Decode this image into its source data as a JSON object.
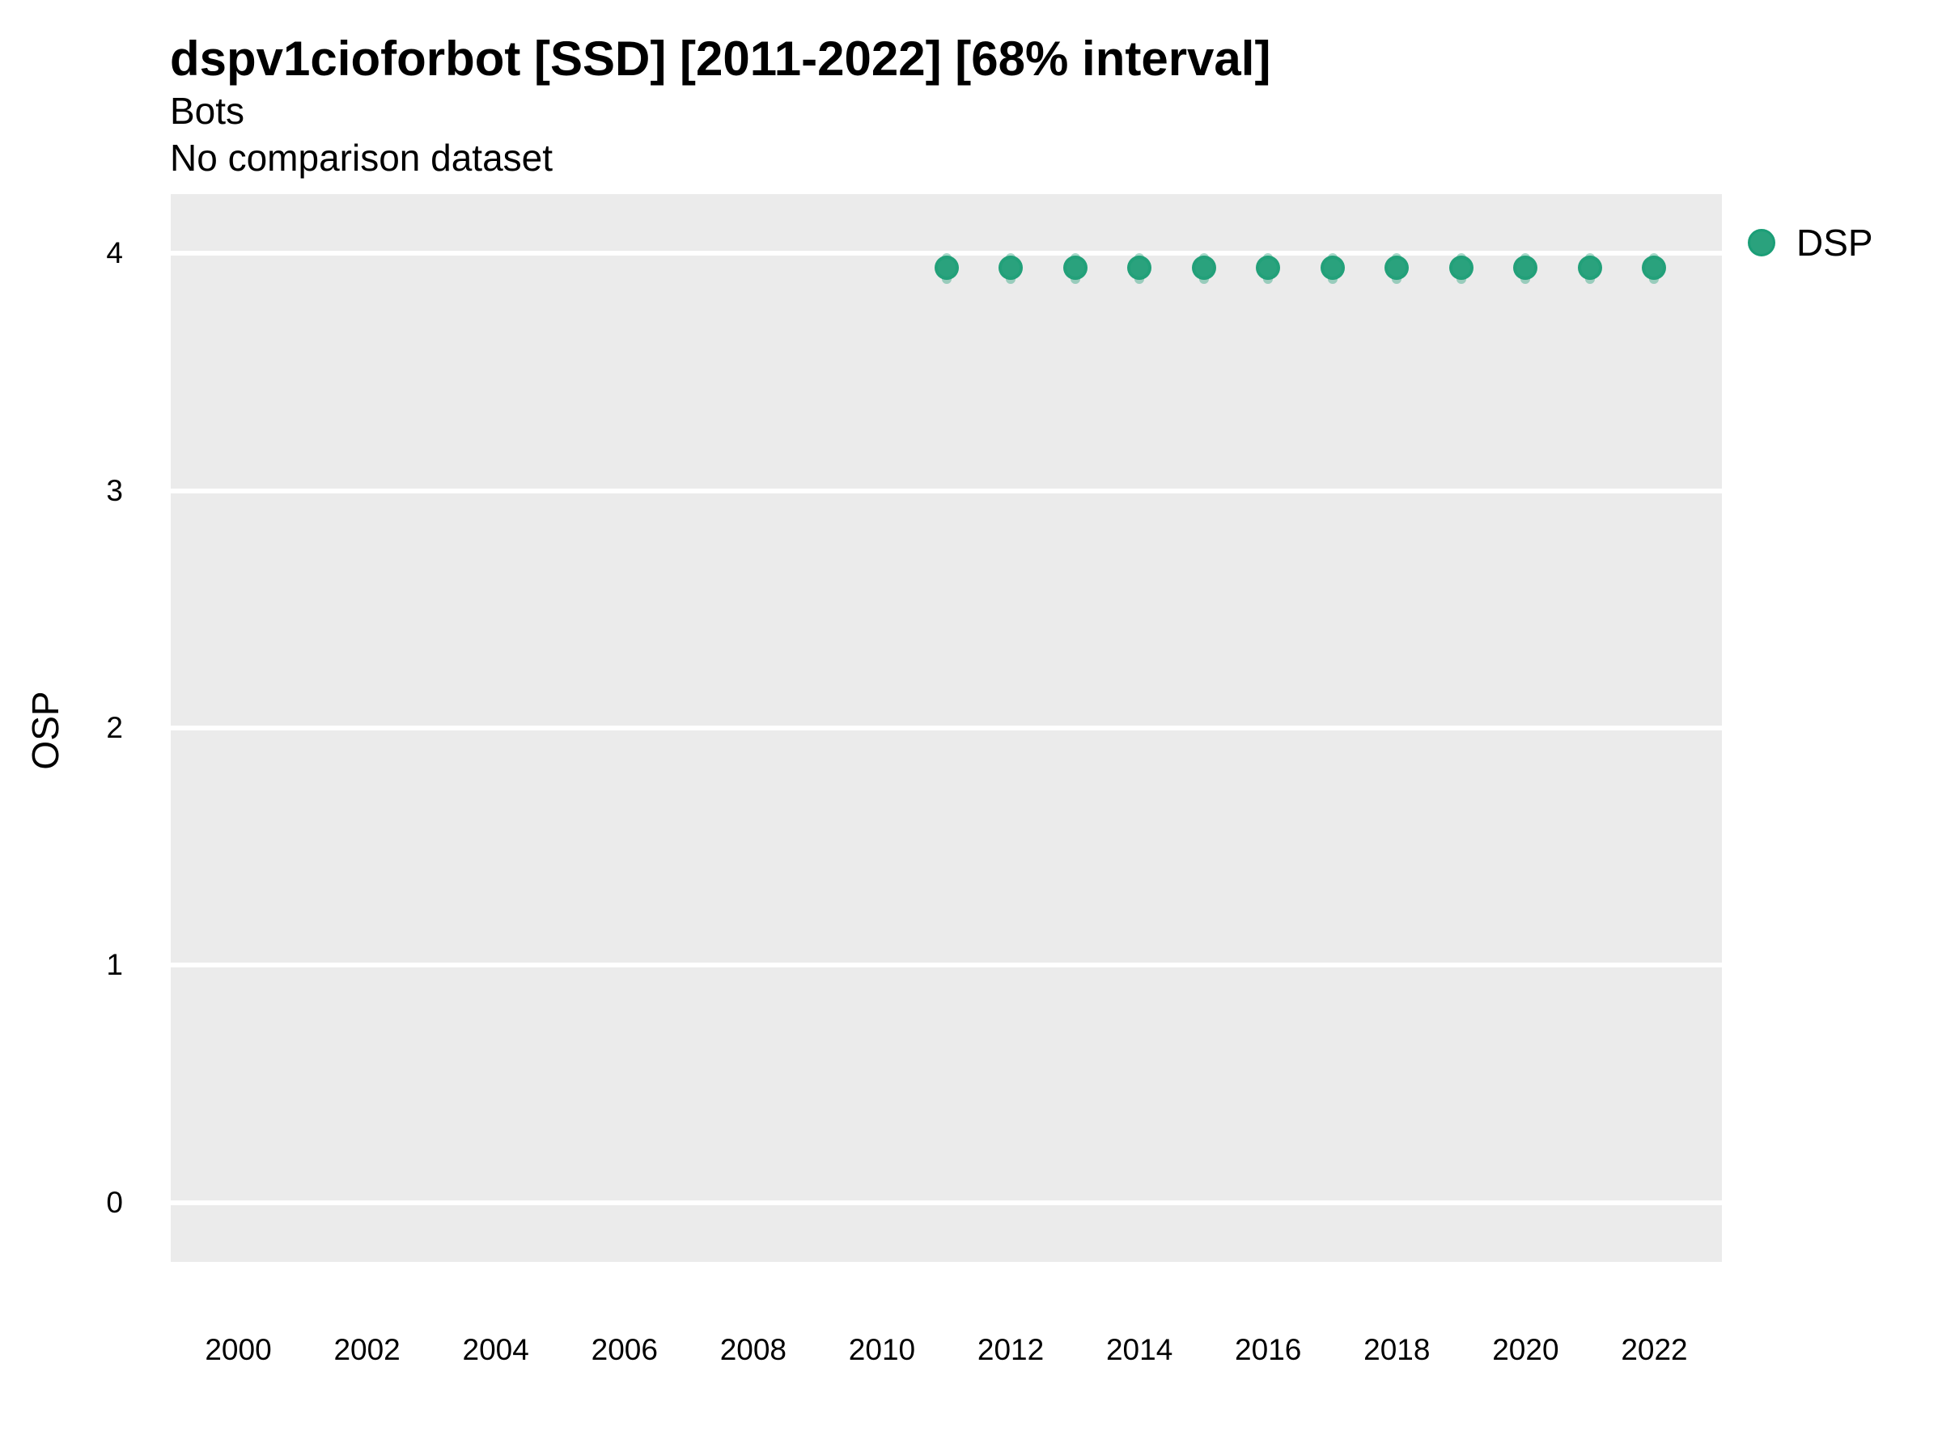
{
  "header": {
    "title": "dspv1cioforbot [SSD] [2011-2022] [68% interval]",
    "subtitle": "Bots",
    "comparison_note": "No comparison dataset"
  },
  "legend": {
    "items": [
      {
        "label": "DSP",
        "marker": "circle-icon",
        "color": "#2aa27d",
        "stroke": "#1b9e77"
      }
    ]
  },
  "colors": {
    "panel_background": "#ebebeb",
    "gridline": "#ffffff",
    "point_fill": "#2aa27d",
    "point_stroke": "rgba(27,158,119,0.55)",
    "error_bar": "rgba(41,161,124,0.42)",
    "text": "#000000"
  },
  "chart_data": {
    "type": "scatter",
    "title": "dspv1cioforbot [SSD] [2011-2022] [68% interval]",
    "subtitle": "Bots",
    "note": "No comparison dataset",
    "xlabel": "",
    "ylabel": "OSP",
    "interval": "68%",
    "grid": "major-horizontal-only",
    "legend_position": "right-top",
    "xlim": [
      1998.95,
      2023.05
    ],
    "ylim": [
      -0.25,
      4.25
    ],
    "x_ticks": [
      2000,
      2002,
      2004,
      2006,
      2008,
      2010,
      2012,
      2014,
      2016,
      2018,
      2020,
      2022
    ],
    "y_ticks": [
      0,
      1,
      2,
      3,
      4
    ],
    "series": [
      {
        "name": "DSP",
        "points": [
          {
            "x": 2011,
            "y": 3.94,
            "lo": 3.87,
            "hi": 4.0
          },
          {
            "x": 2012,
            "y": 3.94,
            "lo": 3.87,
            "hi": 4.0
          },
          {
            "x": 2013,
            "y": 3.94,
            "lo": 3.87,
            "hi": 4.0
          },
          {
            "x": 2014,
            "y": 3.94,
            "lo": 3.87,
            "hi": 4.0
          },
          {
            "x": 2015,
            "y": 3.94,
            "lo": 3.87,
            "hi": 4.0
          },
          {
            "x": 2016,
            "y": 3.94,
            "lo": 3.87,
            "hi": 4.0
          },
          {
            "x": 2017,
            "y": 3.94,
            "lo": 3.87,
            "hi": 4.0
          },
          {
            "x": 2018,
            "y": 3.94,
            "lo": 3.87,
            "hi": 4.0
          },
          {
            "x": 2019,
            "y": 3.94,
            "lo": 3.87,
            "hi": 4.0
          },
          {
            "x": 2020,
            "y": 3.94,
            "lo": 3.87,
            "hi": 4.0
          },
          {
            "x": 2021,
            "y": 3.94,
            "lo": 3.87,
            "hi": 4.0
          },
          {
            "x": 2022,
            "y": 3.94,
            "lo": 3.87,
            "hi": 4.0
          }
        ]
      }
    ]
  }
}
